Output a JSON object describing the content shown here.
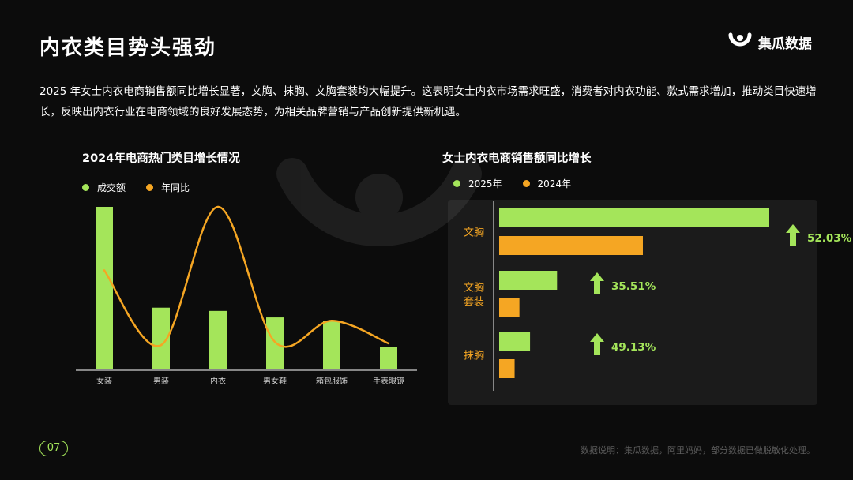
{
  "header": {
    "title": "内衣类目势头强劲",
    "brand": "集瓜数据"
  },
  "intro": "2025 年女士内衣电商销售额同比增长显著，文胸、抹胸、文胸套装均大幅提升。这表明女士内衣市场需求旺盛，消费者对内衣功能、款式需求增加，推动类目快速增长，反映出内衣行业在电商领域的良好发展态势，为相关品牌营销与产品创新提供新机遇。",
  "footer": {
    "page_number": "07",
    "source": "数据说明：集瓜数据，阿里妈妈，部分数据已做脱敏化处理。"
  },
  "colors": {
    "green": "#a4e55a",
    "orange": "#f5a623",
    "axis": "#cfcfcf",
    "panel": "#1b1b1b"
  },
  "chart_data": [
    {
      "type": "bar",
      "title": "2024年电商热门类目增长情况",
      "categories": [
        "女装",
        "男装",
        "内衣",
        "男女鞋",
        "箱包服饰",
        "手表眼镜"
      ],
      "series": [
        {
          "name": "成交额",
          "type": "bar",
          "values": [
            100,
            38,
            36,
            32,
            30,
            14
          ]
        },
        {
          "name": "年同比",
          "type": "line",
          "smooth": true,
          "values": [
            61,
            15,
            100,
            17,
            30,
            16
          ]
        }
      ],
      "ylim": [
        0,
        100
      ],
      "xlabel": "",
      "ylabel": "",
      "legend": "top-left",
      "grid": false
    },
    {
      "type": "bar",
      "orientation": "horizontal",
      "title": "女士内衣电商销售额同比增长",
      "categories": [
        "文胸",
        "文胸套装",
        "抹胸"
      ],
      "category_lines": [
        [
          "文胸"
        ],
        [
          "文胸",
          "套装"
        ],
        [
          "抹胸"
        ]
      ],
      "series": [
        {
          "name": "2025年",
          "values": [
            280,
            60,
            32
          ]
        },
        {
          "name": "2024年",
          "values": [
            149,
            21,
            16
          ]
        }
      ],
      "annotations": [
        "52.03%",
        "35.51%",
        "49.13%"
      ],
      "legend": "top-left",
      "grid": false
    }
  ]
}
